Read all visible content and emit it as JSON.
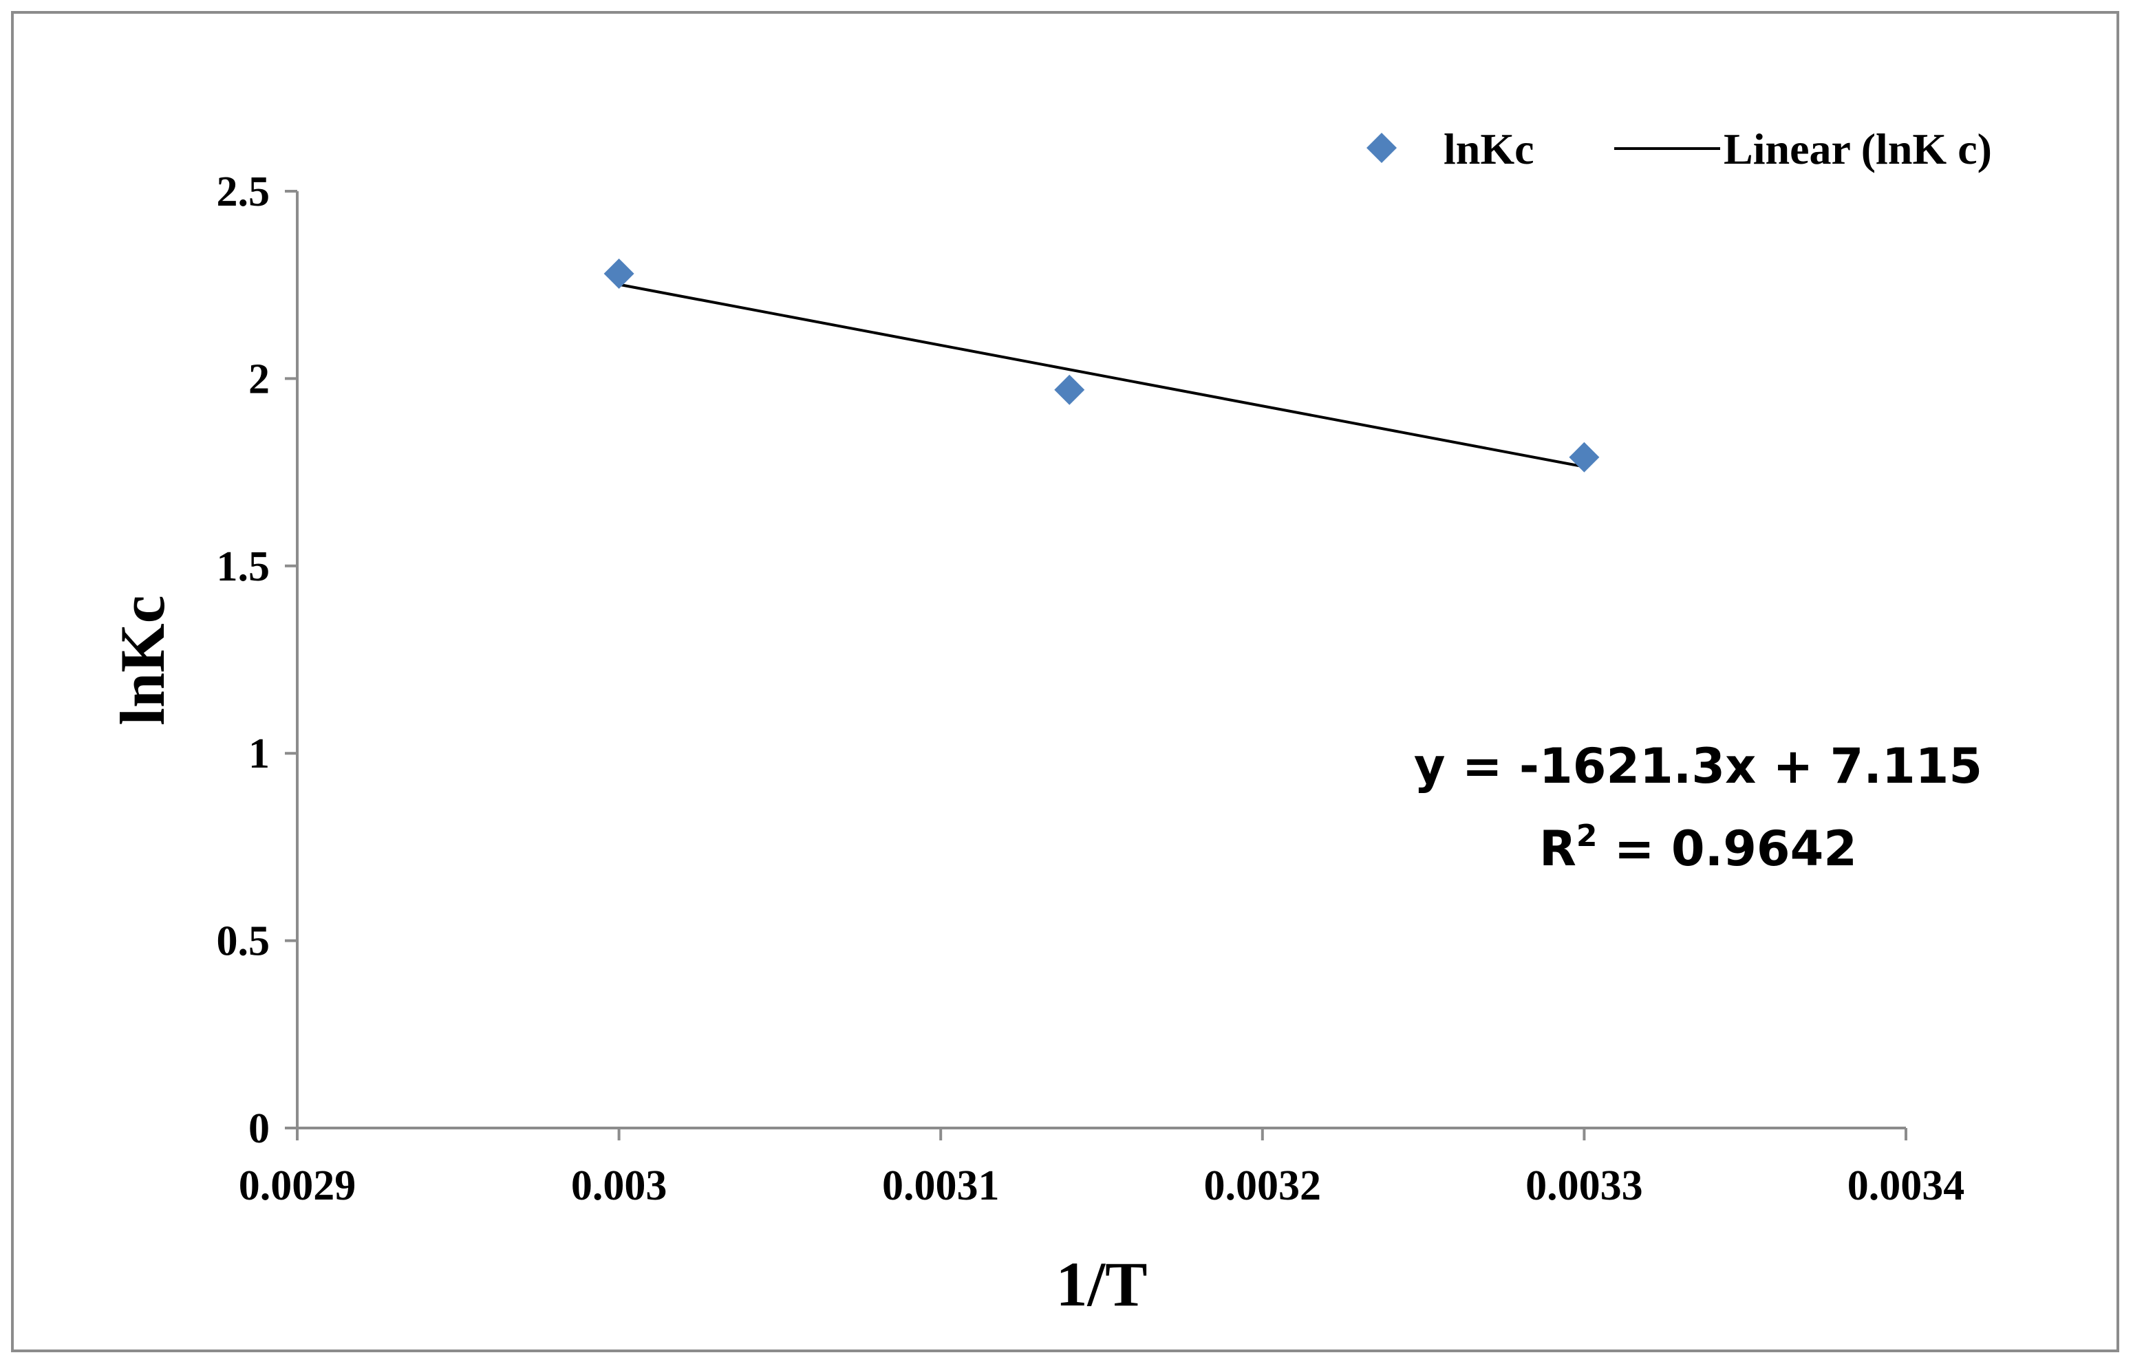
{
  "chart_data": {
    "type": "scatter",
    "xlabel": "1/T",
    "ylabel": "lnKc",
    "xlim": [
      0.0029,
      0.0034
    ],
    "ylim": [
      0,
      2.5
    ],
    "x_ticks": [
      "0.0029",
      "0.003",
      "0.0031",
      "0.0032",
      "0.0033",
      "0.0034"
    ],
    "y_ticks": [
      "0",
      "0.5",
      "1",
      "1.5",
      "2",
      "2.5"
    ],
    "x_tick_values": [
      0.0029,
      0.003,
      0.0031,
      0.0032,
      0.0033,
      0.0034
    ],
    "y_tick_values": [
      0,
      0.5,
      1,
      1.5,
      2,
      2.5
    ],
    "grid": false,
    "legend_position": "top-right",
    "series": [
      {
        "name": "lnKc",
        "marker": "diamond",
        "color": "#4f81bd",
        "x": [
          0.003,
          0.00314,
          0.0033
        ],
        "y": [
          2.28,
          1.97,
          1.79
        ]
      }
    ],
    "trendline": {
      "name": "Linear (lnK c)",
      "color": "#000000",
      "slope": -1621.3,
      "intercept": 7.115,
      "x_range": [
        0.003,
        0.0033
      ]
    },
    "annotation": {
      "equation": "y = -1621.3x + 7.115",
      "r2_prefix": "R",
      "r2_sup": "2",
      "r2_rest": " = 0.9642"
    }
  }
}
